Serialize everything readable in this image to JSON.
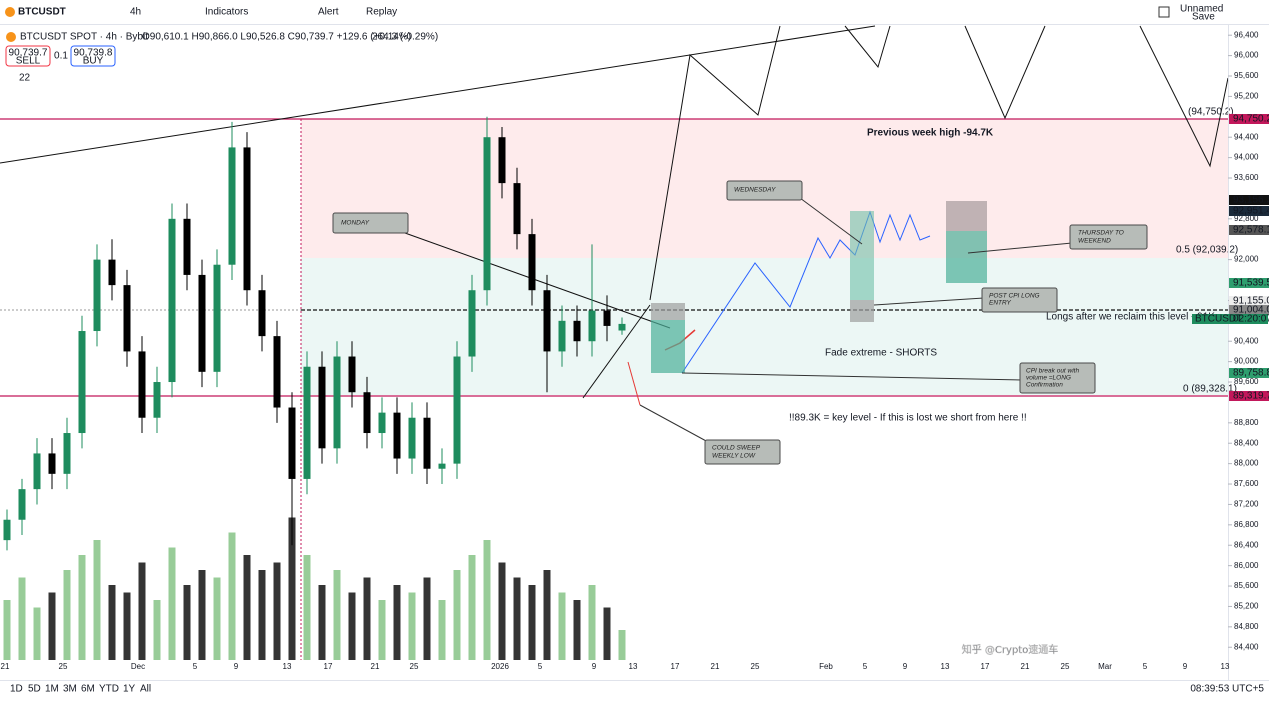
{
  "toolbar": {
    "symbol": "BTCUSDT",
    "interval": "4h",
    "indicators": "Indicators",
    "alert": "Alert",
    "replay": "Replay",
    "layout_name": "Unnamed",
    "save": "Save"
  },
  "legend": {
    "title": "BTCUSDT SPOT · 4h · Bybit",
    "ohlc": "O90,610.1 H90,866.0 L90,526.8 C90,739.7 +129.6 (+0.14%)",
    "change": "264.3 (-0.29%)",
    "sell_price": "90,739.7",
    "sell": "SELL",
    "spread": "0.1",
    "buy_price": "90,739.8",
    "buy": "BUY",
    "indicator_count": "22"
  },
  "chart_data": {
    "type": "candlestick",
    "up_color": "#1e8c5e",
    "down_color": "#000000",
    "volume_up_color": "#86c386",
    "volume_down_color": "#111111",
    "candles": [
      [
        86500,
        87100,
        86300,
        86900
      ],
      [
        86900,
        87700,
        86600,
        87500
      ],
      [
        87500,
        88500,
        87200,
        88200
      ],
      [
        88200,
        88500,
        87500,
        87800
      ],
      [
        87800,
        88900,
        87500,
        88600
      ],
      [
        88600,
        90900,
        88300,
        90600
      ],
      [
        90600,
        92300,
        90300,
        92000
      ],
      [
        92000,
        92400,
        91200,
        91500
      ],
      [
        91500,
        91800,
        89900,
        90200
      ],
      [
        90200,
        90500,
        88600,
        88900
      ],
      [
        88900,
        89900,
        88600,
        89600
      ],
      [
        89600,
        93100,
        89300,
        92800
      ],
      [
        92800,
        93100,
        91400,
        91700
      ],
      [
        91700,
        92000,
        89500,
        89800
      ],
      [
        89800,
        92200,
        89500,
        91900
      ],
      [
        91900,
        94700,
        91600,
        94200
      ],
      [
        94200,
        94500,
        91100,
        91400
      ],
      [
        91400,
        91700,
        90200,
        90500
      ],
      [
        90500,
        90800,
        88800,
        89100
      ],
      [
        89100,
        89400,
        86400,
        87700
      ],
      [
        87700,
        90200,
        87400,
        89900
      ],
      [
        89900,
        90200,
        88000,
        88300
      ],
      [
        88300,
        90400,
        88000,
        90100
      ],
      [
        90100,
        90400,
        89100,
        89400
      ],
      [
        89400,
        89700,
        88300,
        88600
      ],
      [
        88600,
        89300,
        88300,
        89000
      ],
      [
        89000,
        89300,
        87800,
        88100
      ],
      [
        88100,
        89200,
        87800,
        88900
      ],
      [
        88900,
        89200,
        87600,
        87900
      ],
      [
        87900,
        88300,
        87600,
        88000
      ],
      [
        88000,
        90400,
        87700,
        90100
      ],
      [
        90100,
        91700,
        89800,
        91400
      ],
      [
        91400,
        94800,
        91100,
        94400
      ],
      [
        94400,
        94600,
        93200,
        93500
      ],
      [
        93500,
        93800,
        92200,
        92500
      ],
      [
        92500,
        92800,
        91100,
        91400
      ],
      [
        91400,
        91700,
        89400,
        90200
      ],
      [
        90200,
        91100,
        89900,
        90800
      ],
      [
        90800,
        91100,
        90100,
        90400
      ],
      [
        90400,
        92300,
        90100,
        91000
      ],
      [
        91000,
        91300,
        90400,
        90700
      ],
      [
        90610.1,
        90866.0,
        90526.8,
        90739.7
      ]
    ],
    "volumes": [
      40,
      55,
      35,
      45,
      60,
      70,
      80,
      50,
      45,
      65,
      40,
      75,
      50,
      60,
      55,
      85,
      70,
      60,
      65,
      95,
      70,
      50,
      60,
      45,
      55,
      40,
      50,
      45,
      55,
      40,
      60,
      70,
      80,
      65,
      55,
      50,
      60,
      45,
      40,
      50,
      35,
      20
    ],
    "ylim": [
      84150,
      96600
    ],
    "yticks": [
      {
        "value": 96400,
        "label": "96,400"
      },
      {
        "value": 96000,
        "label": "96,000"
      },
      {
        "value": 95600,
        "label": "95,600"
      },
      {
        "value": 95200,
        "label": "95,200"
      },
      {
        "value": 94400,
        "label": "94,400"
      },
      {
        "value": 94000,
        "label": "94,000"
      },
      {
        "value": 93600,
        "label": "93,600"
      },
      {
        "value": 92800,
        "label": "92,800"
      },
      {
        "value": 92000,
        "label": "92,000"
      },
      {
        "value": 91200,
        "label": "91,200"
      },
      {
        "value": 90800,
        "label": "90,800"
      },
      {
        "value": 90400,
        "label": "90,400"
      },
      {
        "value": 90000,
        "label": "90,000"
      },
      {
        "value": 89600,
        "label": "89,600"
      },
      {
        "value": 88800,
        "label": "88,800"
      },
      {
        "value": 88400,
        "label": "88,400"
      },
      {
        "value": 88000,
        "label": "88,000"
      },
      {
        "value": 87600,
        "label": "87,600"
      },
      {
        "value": 87200,
        "label": "87,200"
      },
      {
        "value": 86800,
        "label": "86,800"
      },
      {
        "value": 86400,
        "label": "86,400"
      },
      {
        "value": 86000,
        "label": "86,000"
      },
      {
        "value": 85600,
        "label": "85,600"
      },
      {
        "value": 85200,
        "label": "85,200"
      },
      {
        "value": 84800,
        "label": "84,800"
      },
      {
        "value": 84400,
        "label": "84,400"
      }
    ],
    "x_labels": [
      "21",
      "25",
      "Dec",
      "5",
      "9",
      "13",
      "17",
      "21",
      "25",
      "2026",
      "5",
      "9",
      "13",
      "17",
      "21",
      "25",
      "Feb",
      "5",
      "9",
      "13",
      "17",
      "21",
      "25",
      "Mar",
      "5",
      "9",
      "13"
    ],
    "price_labels": [
      "94,750.2",
      "93,156.3",
      "92,951.4",
      "92,578.1",
      "91,539.5",
      "91,155.0",
      "91,004.0",
      "BTCUSDT",
      "02:20:07",
      "89,758.8",
      "89,319.7"
    ]
  },
  "annotations": {
    "prev_week_high": "Previous week high -94.7K",
    "key_level": "!!89.3K = key level - If this is lost we short from here !!",
    "fade": "Fade extreme - SHORTS",
    "longs": "Longs after we reclaim this level - 91K",
    "fib_top": "(94,750.2)",
    "fib_mid": "0.5 (92,039.2)",
    "fib_low": "0 (89,328.1)",
    "monday": "MONDAY",
    "wednesday": "WEDNESDAY",
    "thursday": [
      "THURSDAY TO",
      "WEEKEND"
    ],
    "post_cpi": [
      "POST CPI LONG",
      "ENTRY"
    ],
    "cpi_breakout": [
      "CPI break out with",
      "volume =LONG",
      "Confirmation"
    ],
    "sweep": [
      "COULD SWEEP",
      "WEEKLY LOW"
    ]
  },
  "bottom_bar": {
    "ranges": [
      "1D",
      "5D",
      "1M",
      "3M",
      "6M",
      "YTD",
      "1Y",
      "All"
    ],
    "clock": "08:39:53 UTC+5"
  },
  "watermark": "知乎 @Crypto速通车"
}
